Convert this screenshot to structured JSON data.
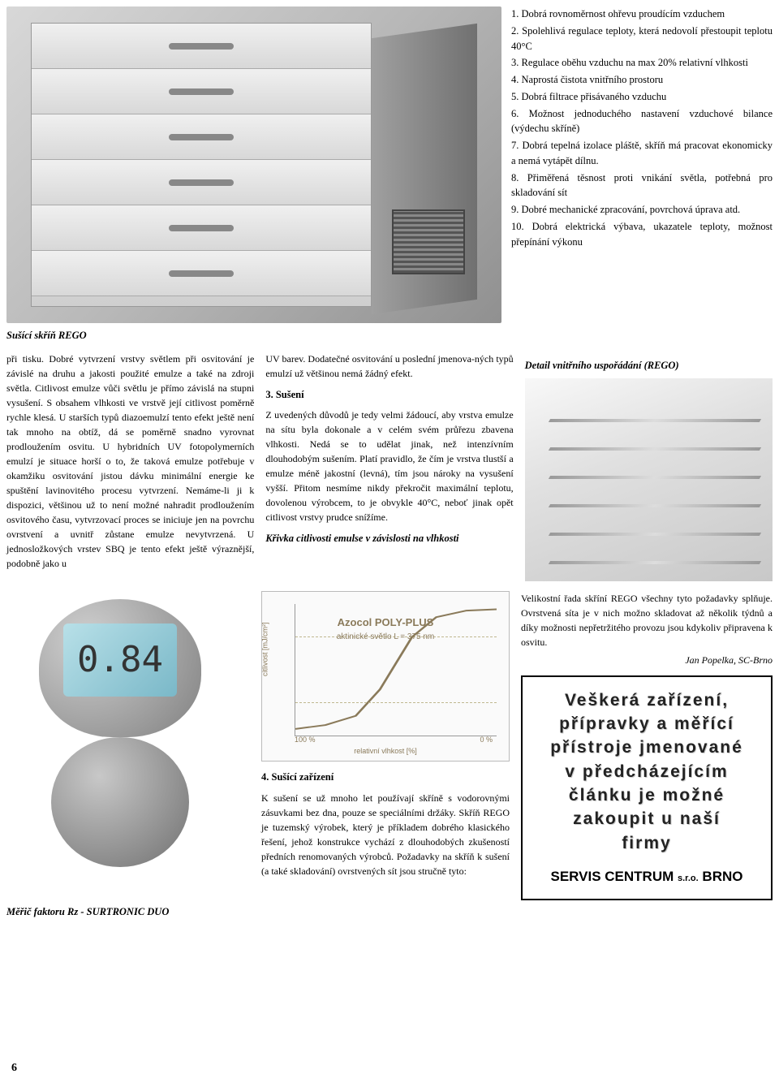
{
  "topImageCaption": "Sušící skříň REGO",
  "properties": {
    "items": [
      "1. Dobrá rovnoměrnost ohřevu proudícím vzduchem",
      "2. Spolehlivá regulace teploty, která nedovolí přestoupit teplotu 40°C",
      "3. Regulace oběhu vzduchu na max 20% relativní vlhkosti",
      "4. Naprostá čistota vnitřního prostoru",
      "5. Dobrá filtrace přisávaného vzduchu",
      "6. Možnost jednoduchého nastavení vzduchové bilance (výdechu skříně)",
      "7. Dobrá tepelná izolace pláště, skříň má pracovat ekonomicky a nemá vytápět dílnu.",
      "8. Přiměřená těsnost proti vnikání světla, potřebná pro skladování sít",
      "9. Dobré mechanické zpracování, povrchová úprava atd.",
      "10. Dobrá elektrická výbava, ukazatele teploty, možnost přepínání výkonu"
    ]
  },
  "col1": "při tisku. Dobré vytvrzení vrstvy světlem při osvitování je závislé na druhu a jakosti použité emulze a také na zdroji světla. Citlivost emulze vůči světlu je přímo závislá na stupni vysušení. S obsahem vlhkosti ve vrstvě její citlivost poměrně rychle klesá. U starších typů diazoemulzí tento efekt ještě není tak mnoho na obtíž, dá se poměrně snadno vyrovnat prodloužením osvitu. U hybridních UV fotopolymerních emulzí je situace horší o to, že taková emulze potřebuje v okamžiku osvitování jistou dávku minimální energie ke spuštění lavinovitého procesu vytvrzení. Nemáme-li ji k dispozici, většinou už to není možné nahradit prodloužením osvitového času, vytvrzovací proces se iniciuje jen na povrchu ovrstvení a uvnitř zůstane emulze nevytvrzená. U jednosložkových vrstev SBQ je tento efekt ještě výraznější, podobně jako u",
  "col2top": "UV barev. Dodatečné osvitování u poslední jmenova-ných typů emulzí už většinou nemá žádný efekt.",
  "section3": {
    "title": "3. Sušení",
    "body": "Z uvedených důvodů je tedy velmi žádoucí, aby vrstva emulze na sítu byla dokonale a v celém svém průřezu zbavena vlhkosti. Nedá se to udělat jinak, než intenzívním dlouhodobým sušením. Platí pravidlo, že čím je vrstva tlustší a emulze méně jakostní (levná), tím jsou nároky na vysušení vyšší. Přitom nesmíme nikdy překročit maximální teplotu, dovolenou výrobcem, to je obvykle 40°C, neboť jinak opět citlivost vrstvy prudce snížíme."
  },
  "curveCaption": "Křivka citlivosti emulse v závislosti na vlhkosti",
  "detailCaption": "Detail vnitřního uspořádání (REGO)",
  "chart": {
    "type": "line",
    "title": "Azocol POLY-PLUS",
    "subtitle": "aktinické světlo\nL = 375 nm",
    "ylabel": "citlivost [mJ/cm²]",
    "xlabel": "relativní vlhkost [%]",
    "xtick_left": "100 %",
    "xtick_right": "0 %",
    "background_color": "#fafafa",
    "line_color": "#8a7a5a",
    "grid_color": "#c0b890",
    "curve_points": [
      [
        0,
        0.95
      ],
      [
        0.15,
        0.92
      ],
      [
        0.3,
        0.85
      ],
      [
        0.42,
        0.65
      ],
      [
        0.5,
        0.45
      ],
      [
        0.58,
        0.25
      ],
      [
        0.7,
        0.1
      ],
      [
        0.85,
        0.05
      ],
      [
        1,
        0.04
      ]
    ]
  },
  "col3text": "Velikostní řada skříní REGO všechny tyto požadavky splňuje. Ovrstvená síta je v nich možno skladovat až několik týdnů a díky možnosti nepřetržitého provozu jsou kdykoliv připravena k osvitu.",
  "author": "Jan Popelka, SC-Brno",
  "section4": {
    "title": "4. Sušící zařízení",
    "body": "K sušení se už mnoho let používají skříně s vodorovnými zásuvkami bez dna, pouze se speciálními držáky. Skříň REGO je tuzemský výrobek, který je příkladem dobrého klasického řešení, jehož konstrukce vychází z dlouhodobých zkušeností předních renomovaných výrobců. Požadavky na skříň k sušení (a také skladování) ovrstvených sít jsou stručně tyto:"
  },
  "deviceCaption": "Měřič faktoru Rz - SURTRONIC DUO",
  "deviceDisplay": "0.84",
  "ad": {
    "line1": "Veškerá zařízení,",
    "line2": "přípravky a měřící",
    "line3": "přístroje jmenované",
    "line4": "v předcházejícím",
    "line5": "článku je možné",
    "line6": "zakoupit u naší",
    "line7": "firmy",
    "company": "SERVIS CENTRUM",
    "company_suffix": "s.r.o.",
    "company_city": "BRNO"
  },
  "pageNumber": "6"
}
